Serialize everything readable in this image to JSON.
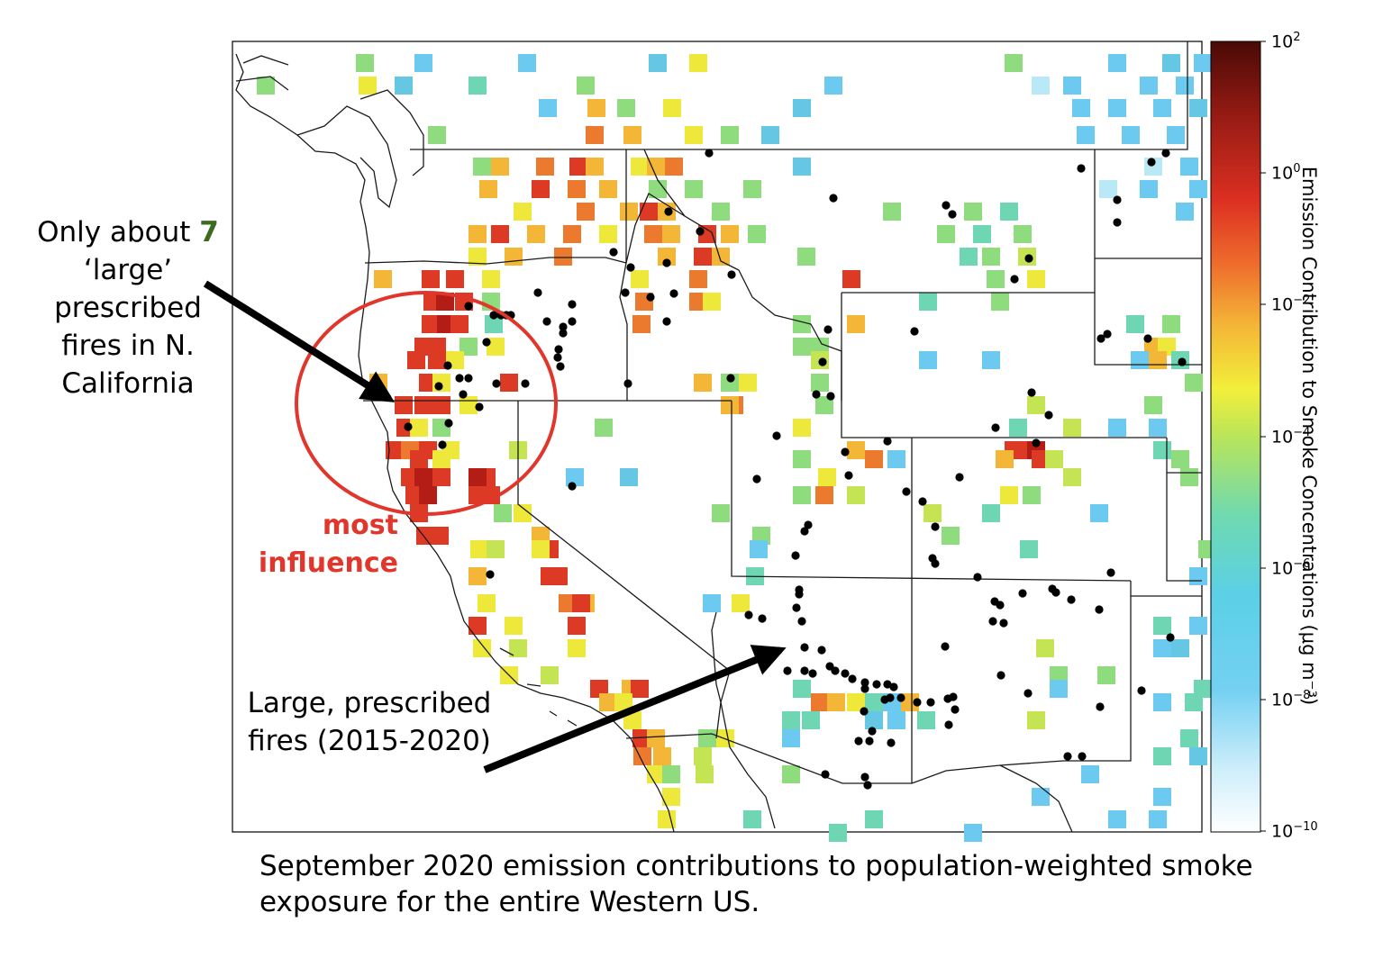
{
  "annotations": {
    "left_prefix": "Only about ",
    "left_number": "7",
    "left_rest": "‘large’ prescribed fires in N. California",
    "influence": "most influence",
    "bottom": "Large, prescribed fires (2015-2020)",
    "caption": "September 2020 emission contributions to population-weighted smoke exposure for the entire Western US."
  },
  "colorbar": {
    "label": "Emission Contribution to Smoke Concentrations (μg m⁻³)",
    "ticks": [
      {
        "base": "10",
        "exp": "2"
      },
      {
        "base": "10",
        "exp": "0"
      },
      {
        "base": "10",
        "exp": "−2"
      },
      {
        "base": "10",
        "exp": "−4"
      },
      {
        "base": "10",
        "exp": "−6"
      },
      {
        "base": "10",
        "exp": "−8"
      },
      {
        "base": "10",
        "exp": "−10"
      }
    ],
    "scale": "log"
  },
  "colors": {
    "annotation_green": "#3a6b1e",
    "influence_red": "#e0362c"
  }
}
